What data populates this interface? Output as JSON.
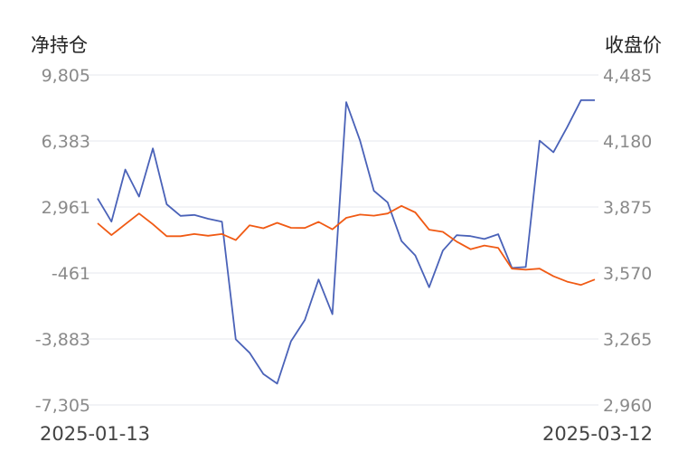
{
  "chart_data": {
    "type": "line",
    "left_axis": {
      "label": "净持仓",
      "ticks": [
        "9,805",
        "6,383",
        "2,961",
        "-461",
        "-3,883",
        "-7,305"
      ],
      "ylim": [
        -7305,
        9805
      ]
    },
    "right_axis": {
      "label": "收盘价",
      "ticks": [
        "4,485",
        "4,180",
        "3,875",
        "3,570",
        "3,265",
        "2,960"
      ],
      "ylim": [
        2960,
        4485
      ]
    },
    "x_labels": {
      "start": "2025-01-13",
      "end": "2025-03-12"
    },
    "grid": "horizontal",
    "series": [
      {
        "axis": "left",
        "color": "#4a62b8",
        "values": [
          3400,
          2200,
          4900,
          3500,
          6000,
          3100,
          2500,
          2550,
          2350,
          2200,
          -3900,
          -4600,
          -5700,
          -6200,
          -4000,
          -2900,
          -800,
          -2600,
          8400,
          6400,
          3800,
          3200,
          1200,
          450,
          -1200,
          700,
          1500,
          1450,
          1300,
          1550,
          -200,
          -150,
          6400,
          5800,
          7100,
          8500,
          8500
        ]
      },
      {
        "axis": "right",
        "color": "#f05a14",
        "values": [
          3800,
          3745,
          3795,
          3845,
          3795,
          3740,
          3740,
          3750,
          3742,
          3750,
          3722,
          3790,
          3777,
          3802,
          3779,
          3778,
          3806,
          3772,
          3825,
          3840,
          3835,
          3845,
          3880,
          3850,
          3770,
          3760,
          3715,
          3680,
          3697,
          3686,
          3590,
          3585,
          3590,
          3555,
          3530,
          3515,
          3540
        ]
      }
    ]
  }
}
